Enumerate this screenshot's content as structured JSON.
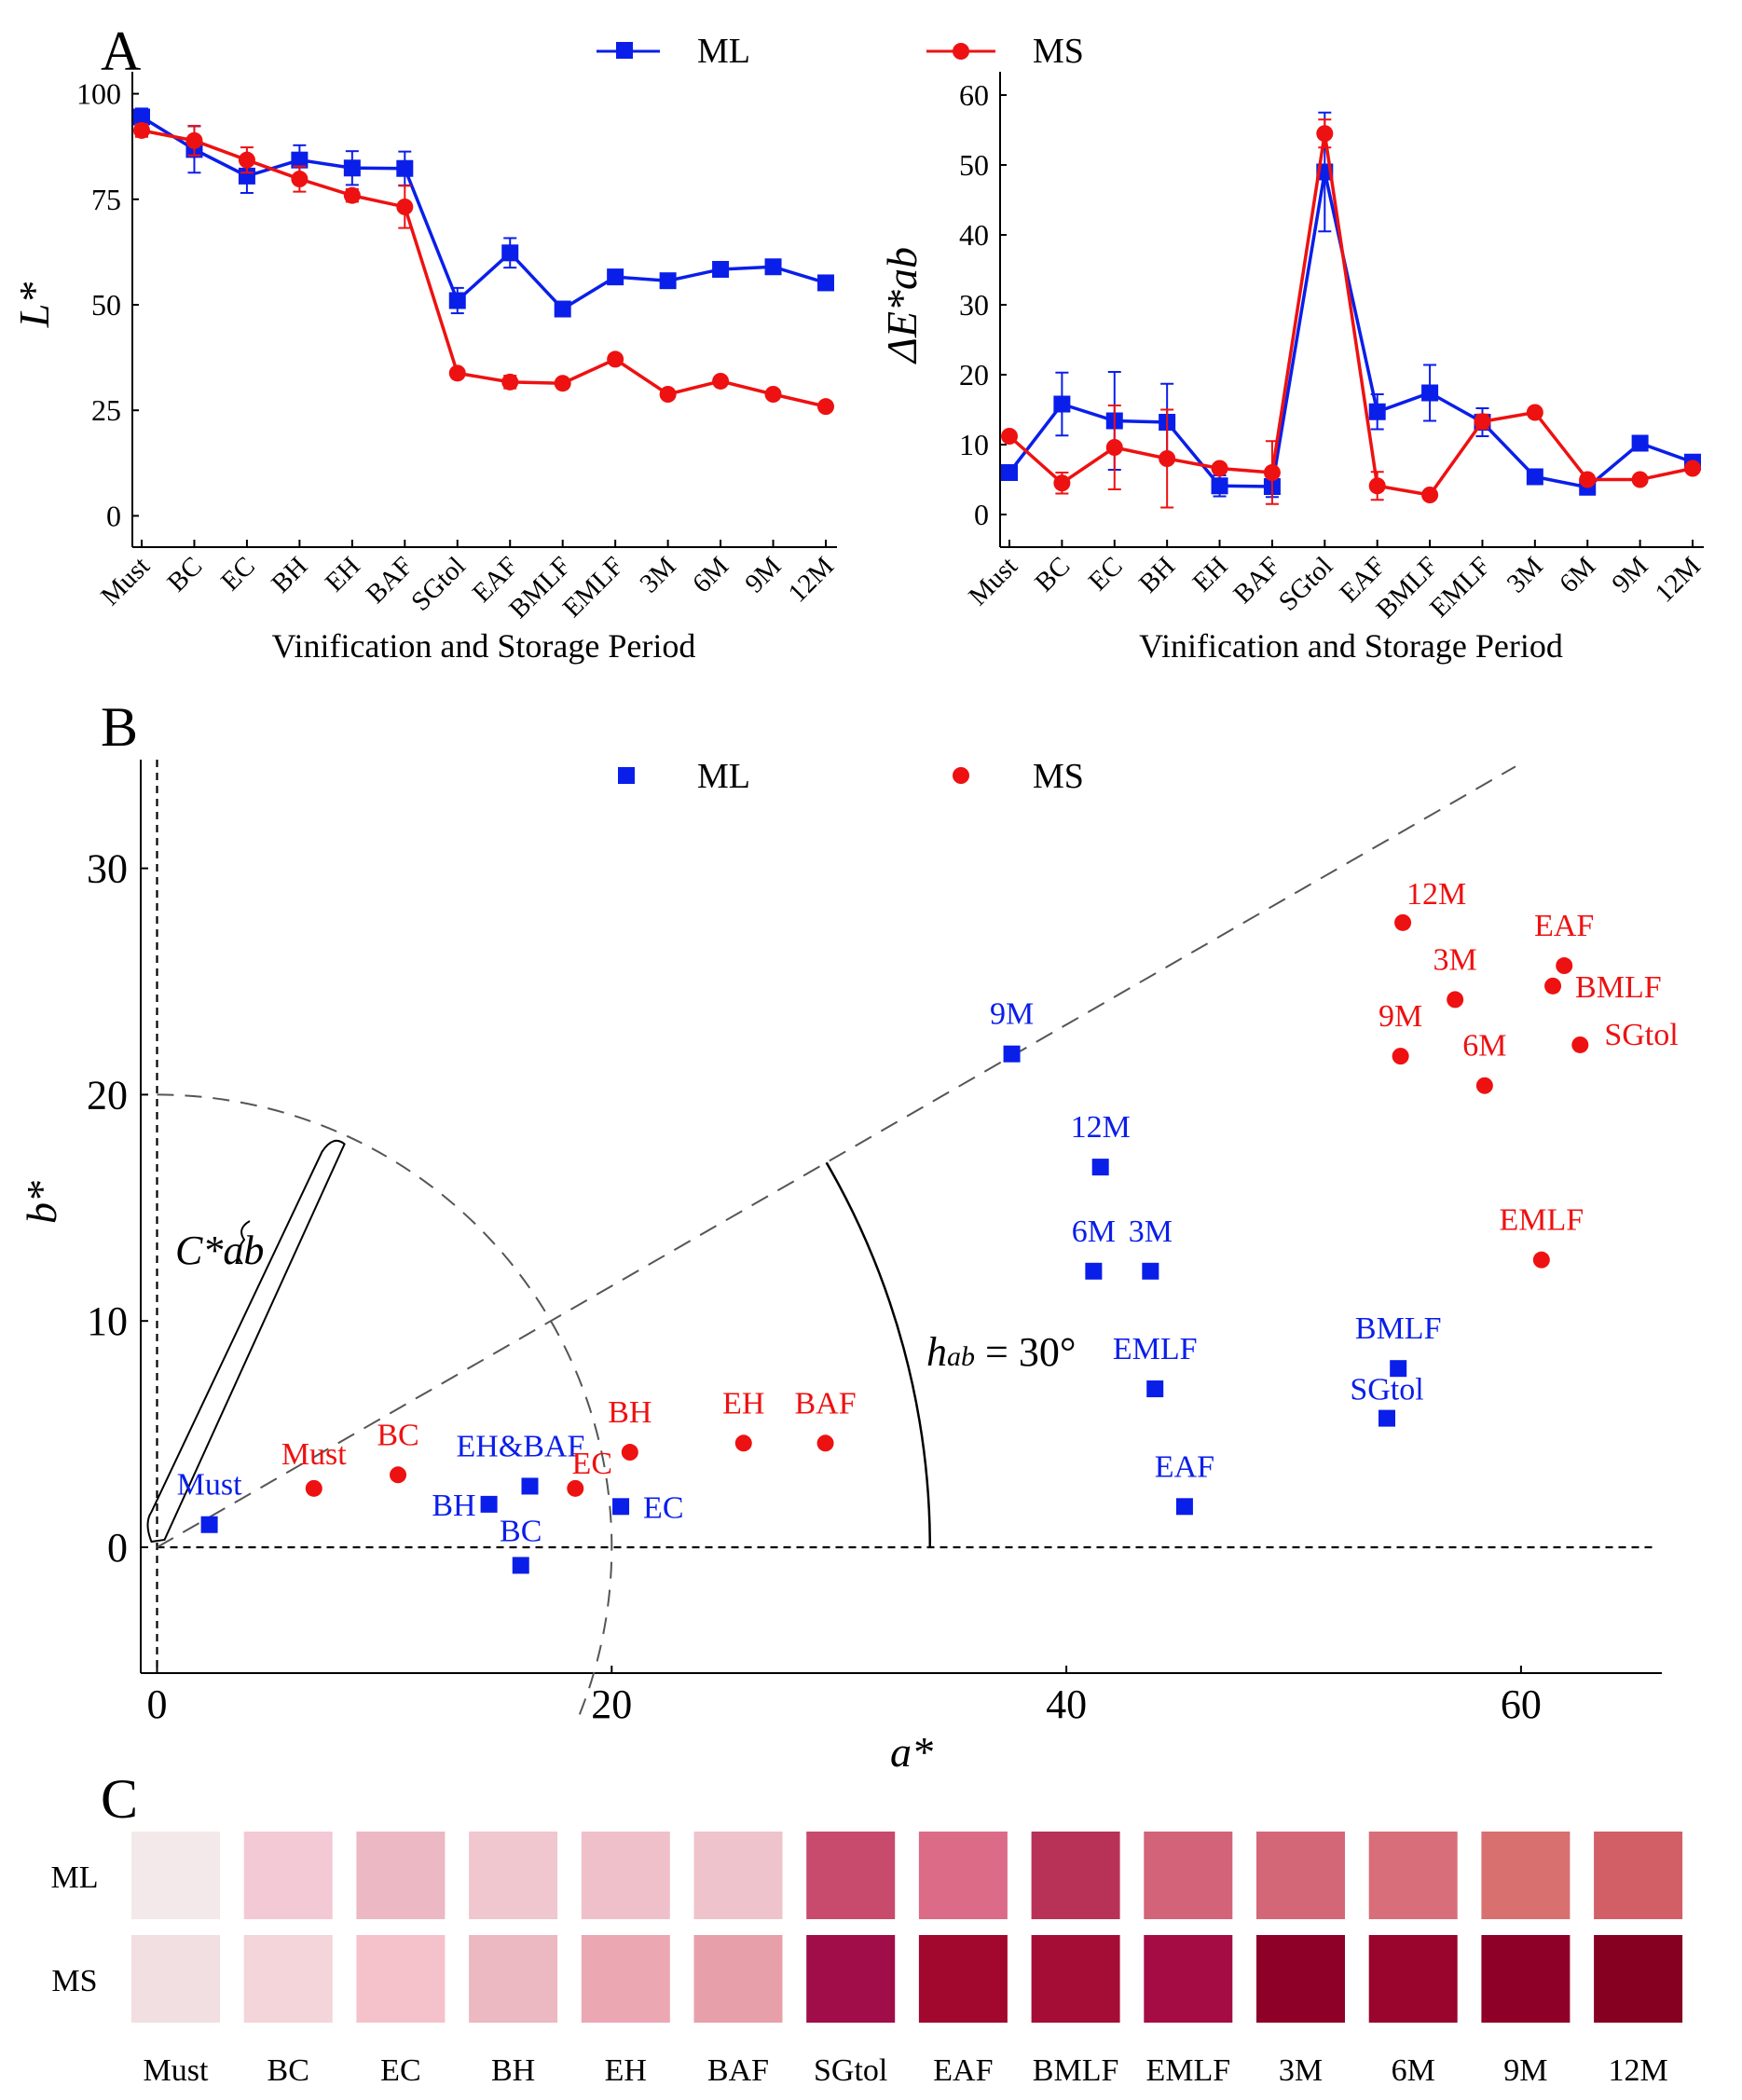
{
  "panels": {
    "a": "A",
    "b": "B",
    "c": "C"
  },
  "legend": {
    "ml": "ML",
    "ms": "MS"
  },
  "colors": {
    "ml": "#0a1eea",
    "ms": "#ee1111",
    "axis": "#000000"
  },
  "chart_data": [
    {
      "id": "A-left",
      "type": "line",
      "title": "",
      "xlabel": "Vinification and Storage Period",
      "ylabel": "L*",
      "categories": [
        "Must",
        "BC",
        "EC",
        "BH",
        "EH",
        "BAF",
        "SGtol",
        "EAF",
        "BMLF",
        "EMLF",
        "3M",
        "6M",
        "9M",
        "12M"
      ],
      "ylim": [
        -3,
        103
      ],
      "yticks": [
        0,
        25,
        50,
        75,
        100
      ],
      "series": [
        {
          "name": "ML",
          "values": [
            94.5,
            86.8,
            80.5,
            84.3,
            82.4,
            82.3,
            51.0,
            62.3,
            49.0,
            56.6,
            55.7,
            58.4,
            59.0,
            55.2
          ],
          "errors": [
            2,
            5.5,
            4,
            3.5,
            4,
            4,
            3,
            3.5,
            1.5,
            1.2,
            1.2,
            1.2,
            1.2,
            1.2
          ]
        },
        {
          "name": "MS",
          "values": [
            91.3,
            88.9,
            84.3,
            79.8,
            75.9,
            73.2,
            33.8,
            31.7,
            31.4,
            37.1,
            28.8,
            31.9,
            28.8,
            25.9
          ],
          "errors": [
            1.5,
            3.5,
            3,
            3,
            1.5,
            5,
            1,
            1.5,
            1,
            1,
            1,
            1,
            1,
            1
          ]
        }
      ]
    },
    {
      "id": "A-right",
      "type": "line",
      "title": "",
      "xlabel": "Vinification and Storage Period",
      "ylabel": "ΔE*ab",
      "categories": [
        "Must",
        "BC",
        "EC",
        "BH",
        "EH",
        "BAF",
        "SGtol",
        "EAF",
        "BMLF",
        "EMLF",
        "3M",
        "6M",
        "9M",
        "12M"
      ],
      "ylim": [
        -2,
        62
      ],
      "yticks": [
        0,
        10,
        20,
        30,
        40,
        50,
        60
      ],
      "series": [
        {
          "name": "ML",
          "values": [
            6.0,
            15.8,
            13.4,
            13.2,
            4.1,
            4.0,
            49.0,
            14.7,
            17.4,
            13.2,
            5.4,
            3.9,
            10.2,
            7.5
          ],
          "errors": [
            1,
            4.5,
            7,
            5.5,
            1.5,
            1.5,
            8.5,
            2.5,
            4,
            2,
            0.5,
            0.5,
            0.8,
            0.8
          ]
        },
        {
          "name": "MS",
          "values": [
            11.2,
            4.5,
            9.6,
            8.0,
            6.6,
            6.0,
            54.5,
            4.1,
            2.8,
            13.3,
            14.6,
            5.0,
            5.0,
            6.6
          ],
          "errors": [
            0.5,
            1.5,
            6,
            7,
            0.5,
            4.5,
            2,
            2,
            0.5,
            1,
            0.5,
            0.5,
            0.5,
            0.5
          ]
        }
      ]
    },
    {
      "id": "B",
      "type": "scatter",
      "title": "",
      "xlabel": "a*",
      "ylabel": "b*",
      "xlim": [
        -1,
        66
      ],
      "ylim": [
        -6,
        35
      ],
      "xticks": [
        0,
        20,
        40,
        60
      ],
      "yticks": [
        0,
        10,
        20,
        30
      ],
      "annotations": {
        "chroma": "C*ab",
        "hue": "hab = 30°",
        "hue_sub": "ab",
        "hue_rest": " = 30°",
        "chroma_radius": 20,
        "hue_radius": 34,
        "hue_angle_deg": 30
      },
      "series": [
        {
          "name": "ML",
          "points": [
            {
              "label": "Must",
              "a": 2.3,
              "b": 1.0
            },
            {
              "label": "BC",
              "a": 16.0,
              "b": -0.8
            },
            {
              "label": "EC",
              "a": 20.4,
              "b": 1.8
            },
            {
              "label": "BH",
              "a": 14.6,
              "b": 1.9
            },
            {
              "label": "EH&BAF",
              "a": 16.4,
              "b": 2.7
            },
            {
              "label": "SGtol",
              "a": 54.1,
              "b": 5.7
            },
            {
              "label": "EAF",
              "a": 45.2,
              "b": 1.8
            },
            {
              "label": "BMLF",
              "a": 54.6,
              "b": 7.9
            },
            {
              "label": "EMLF",
              "a": 43.9,
              "b": 7.0
            },
            {
              "label": "3M",
              "a": 43.7,
              "b": 12.2
            },
            {
              "label": "6M",
              "a": 41.2,
              "b": 12.2
            },
            {
              "label": "9M",
              "a": 37.6,
              "b": 21.8
            },
            {
              "label": "12M",
              "a": 41.5,
              "b": 16.8
            }
          ]
        },
        {
          "name": "MS",
          "points": [
            {
              "label": "Must",
              "a": 6.9,
              "b": 2.6
            },
            {
              "label": "BC",
              "a": 10.6,
              "b": 3.2
            },
            {
              "label": "EC",
              "a": 18.4,
              "b": 2.6
            },
            {
              "label": "BH",
              "a": 20.8,
              "b": 4.2
            },
            {
              "label": "EH",
              "a": 25.8,
              "b": 4.6
            },
            {
              "label": "BAF",
              "a": 29.4,
              "b": 4.6
            },
            {
              "label": "SGtol",
              "a": 62.6,
              "b": 22.2
            },
            {
              "label": "EAF",
              "a": 61.9,
              "b": 25.7
            },
            {
              "label": "BMLF",
              "a": 61.4,
              "b": 24.8
            },
            {
              "label": "EMLF",
              "a": 60.9,
              "b": 12.7
            },
            {
              "label": "3M",
              "a": 57.1,
              "b": 24.2
            },
            {
              "label": "6M",
              "a": 58.4,
              "b": 20.4
            },
            {
              "label": "9M",
              "a": 54.7,
              "b": 21.7
            },
            {
              "label": "12M",
              "a": 54.8,
              "b": 27.6
            }
          ]
        }
      ]
    },
    {
      "id": "C",
      "type": "heatmap",
      "title": "",
      "rows": [
        "ML",
        "MS"
      ],
      "columns": [
        "Must",
        "BC",
        "EC",
        "BH",
        "EH",
        "BAF",
        "SGtol",
        "EAF",
        "BMLF",
        "EMLF",
        "3M",
        "6M",
        "9M",
        "12M"
      ],
      "colors": [
        [
          "#f3e9eb",
          "#f3c9d6",
          "#ecb8c4",
          "#f0c6cf",
          "#f0c0ca",
          "#efc3cb",
          "#c84a6d",
          "#dc6b88",
          "#b83258",
          "#d26379",
          "#d46777",
          "#d76e79",
          "#d87070",
          "#d25e66"
        ],
        [
          "#f1dfe1",
          "#f3d5da",
          "#f5c2cc",
          "#ecb8c2",
          "#eba7b2",
          "#e7a0aa",
          "#a00d48",
          "#a2072d",
          "#a60d36",
          "#a60c44",
          "#8e0027",
          "#99052c",
          "#8e0028",
          "#860022"
        ]
      ]
    }
  ]
}
